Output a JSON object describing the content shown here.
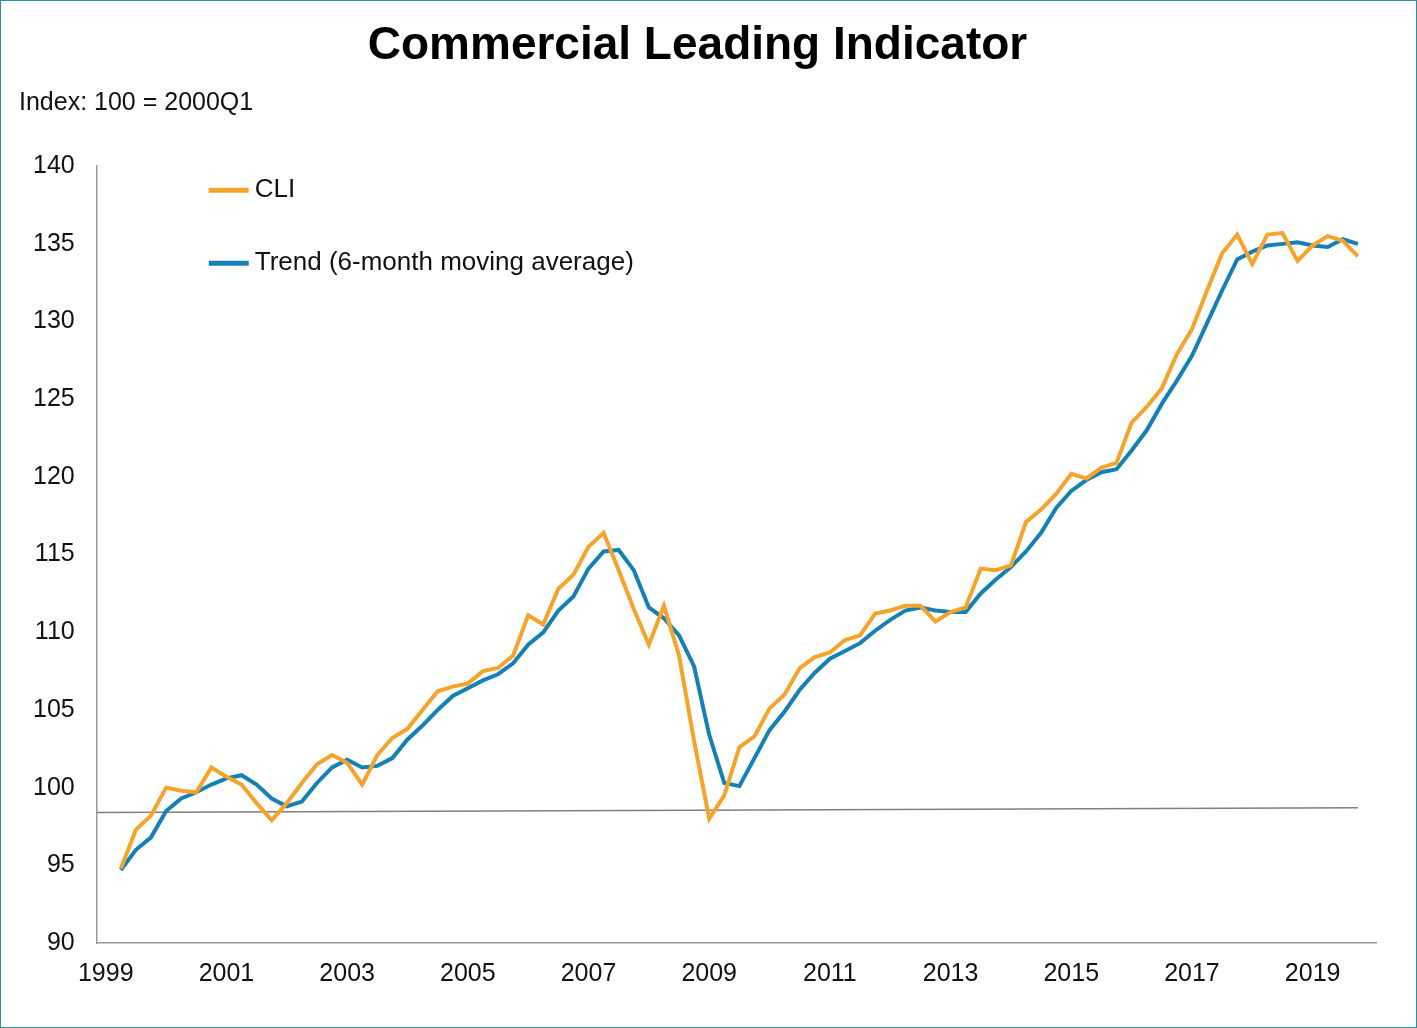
{
  "chart_data": {
    "type": "line",
    "title": "Commercial Leading Indicator",
    "y_label": "Index: 100 = 2000Q1",
    "x": [
      1999.25,
      1999.5,
      1999.75,
      2000,
      2000.25,
      2000.5,
      2000.75,
      2001,
      2001.25,
      2001.5,
      2001.75,
      2002,
      2002.25,
      2002.5,
      2002.75,
      2003,
      2003.25,
      2003.5,
      2003.75,
      2004,
      2004.25,
      2004.5,
      2004.75,
      2005,
      2005.25,
      2005.5,
      2005.75,
      2006,
      2006.25,
      2006.5,
      2006.75,
      2007,
      2007.25,
      2007.5,
      2007.75,
      2008,
      2008.25,
      2008.5,
      2008.75,
      2009,
      2009.25,
      2009.5,
      2009.75,
      2010,
      2010.25,
      2010.5,
      2010.75,
      2011,
      2011.25,
      2011.5,
      2011.75,
      2012,
      2012.25,
      2012.5,
      2012.75,
      2013,
      2013.25,
      2013.5,
      2013.75,
      2014,
      2014.25,
      2014.5,
      2014.75,
      2015,
      2015.25,
      2015.5,
      2015.75,
      2016,
      2016.25,
      2016.5,
      2016.75,
      2017,
      2017.25,
      2017.5,
      2017.75,
      2018,
      2018.25,
      2018.5,
      2018.75,
      2019,
      2019.25,
      2019.5,
      2019.75
    ],
    "series": [
      {
        "name": "CLI",
        "color": "#f5a32b",
        "values": [
          94.8,
          97.3,
          98.2,
          100.0,
          99.8,
          99.7,
          101.3,
          100.7,
          100.2,
          99.0,
          97.9,
          99.0,
          100.3,
          101.5,
          102.1,
          101.6,
          100.2,
          102.1,
          103.2,
          103.8,
          105.0,
          106.2,
          106.5,
          106.7,
          107.5,
          107.7,
          108.5,
          111.1,
          110.5,
          112.8,
          113.7,
          115.5,
          116.4,
          114.0,
          111.5,
          109.2,
          111.7,
          108.5,
          103.0,
          98.0,
          99.5,
          102.6,
          103.3,
          105.1,
          106.0,
          107.7,
          108.4,
          108.7,
          109.5,
          109.8,
          111.2,
          111.4,
          111.7,
          111.7,
          110.7,
          111.3,
          111.6,
          114.1,
          114.0,
          114.3,
          117.1,
          117.9,
          118.9,
          120.2,
          119.9,
          120.6,
          120.9,
          123.5,
          124.5,
          125.7,
          127.9,
          129.5,
          132.0,
          134.4,
          135.6,
          133.7,
          135.6,
          135.7,
          133.9,
          134.9,
          135.5,
          135.2,
          134.2
        ]
      },
      {
        "name": "Trend (6-month moving average)",
        "color": "#1380b6",
        "values": [
          94.7,
          96.0,
          96.8,
          98.5,
          99.3,
          99.7,
          100.2,
          100.6,
          100.8,
          100.2,
          99.3,
          98.8,
          99.1,
          100.3,
          101.3,
          101.8,
          101.3,
          101.4,
          101.9,
          103.1,
          104.0,
          105.0,
          105.9,
          106.4,
          106.9,
          107.3,
          108.0,
          109.2,
          110.0,
          111.4,
          112.3,
          114.1,
          115.2,
          115.3,
          114.0,
          111.6,
          110.9,
          109.8,
          107.8,
          103.4,
          100.3,
          100.1,
          101.9,
          103.7,
          104.9,
          106.3,
          107.4,
          108.3,
          108.8,
          109.3,
          110.1,
          110.8,
          111.4,
          111.6,
          111.4,
          111.3,
          111.3,
          112.5,
          113.4,
          114.2,
          115.2,
          116.4,
          118.0,
          119.1,
          119.8,
          120.3,
          120.5,
          121.7,
          123.0,
          124.7,
          126.2,
          127.8,
          129.9,
          132.0,
          134.0,
          134.5,
          134.9,
          135.0,
          135.1,
          134.9,
          134.8,
          135.3,
          135.0
        ]
      }
    ],
    "reference_line": {
      "x": [
        1998.85,
        2019.75
      ],
      "values": [
        98.4,
        98.7
      ],
      "color": "#7f7f7f"
    },
    "xlim": [
      1998.85,
      2020.05
    ],
    "xticks": [
      1999,
      2001,
      2003,
      2005,
      2007,
      2009,
      2011,
      2013,
      2015,
      2017,
      2019
    ],
    "ylim": [
      90,
      140
    ],
    "yticks": [
      90,
      95,
      100,
      105,
      110,
      115,
      120,
      125,
      130,
      135,
      140
    ],
    "grid": false,
    "legend": "upper left"
  }
}
